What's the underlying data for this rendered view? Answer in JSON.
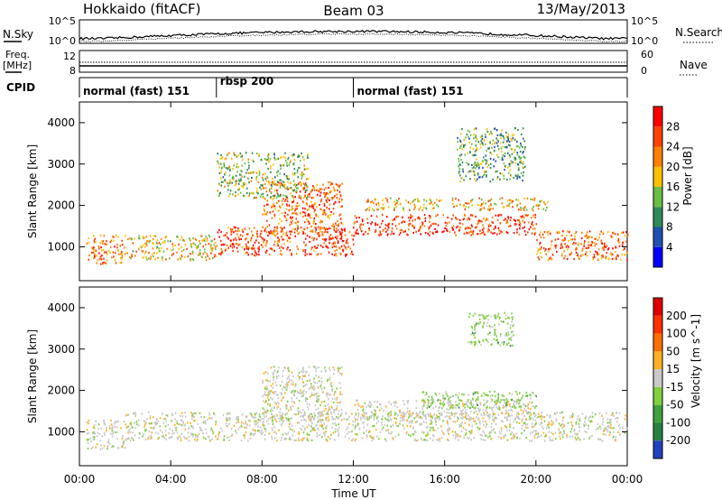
{
  "header": {
    "station": "Hokkaido (fitACF)",
    "beam": "Beam 03",
    "date": "13/May/2013"
  },
  "summary": {
    "nsky_label": "N.Sky",
    "nsearch_label": "N.Search",
    "nsky_ticks": [
      "10^5",
      "10^0"
    ],
    "nsearch_ticks": [
      "10^5",
      "10^0"
    ],
    "freq_label_line1": "Freq.",
    "freq_label_line2": "[MHz]",
    "freq_ticks": [
      "12",
      "8"
    ],
    "nave_label": "Nave",
    "nave_ticks": [
      "60",
      "0"
    ],
    "cpid_label": "CPID"
  },
  "cpid_modes": [
    {
      "label": "normal (fast) 151",
      "start_hour": 0
    },
    {
      "label": "rbsp 200",
      "start_hour": 6
    },
    {
      "label": "normal (fast) 151",
      "start_hour": 12
    }
  ],
  "x_ticks": [
    "00:00",
    "04:00",
    "08:00",
    "12:00",
    "16:00",
    "20:00",
    "00:00"
  ],
  "x_label": "Time UT",
  "chart_data": [
    {
      "type": "heatmap",
      "quantity": "Power",
      "ylabel": "Slant Range [km]",
      "xlabel": "Time UT",
      "x_range_hours": [
        0,
        24
      ],
      "ylim": [
        180,
        4500
      ],
      "y_ticks": [
        1000,
        2000,
        3000,
        4000
      ],
      "colorbar_label": "Power [dB]",
      "colorbar_ticks": [
        "28",
        "24",
        "20",
        "16",
        "12",
        "8",
        "4"
      ],
      "colorbar_colors": [
        "#0000ff",
        "#2050b0",
        "#2e8b57",
        "#6abd45",
        "#ffc000",
        "#ff8000",
        "#ff4000",
        "#ff0000"
      ],
      "scatter_bands": [
        {
          "t0": 0.3,
          "t1": 2.0,
          "r0": 600,
          "r1": 1300,
          "level": 0.75
        },
        {
          "t0": 2.0,
          "t1": 6.0,
          "r0": 700,
          "r1": 1300,
          "level": 0.6
        },
        {
          "t0": 6.0,
          "t1": 12.0,
          "r0": 800,
          "r1": 1500,
          "level": 0.85
        },
        {
          "t0": 8.0,
          "t1": 11.5,
          "r0": 1300,
          "r1": 2600,
          "level": 0.8
        },
        {
          "t0": 12.0,
          "t1": 20.0,
          "r0": 1300,
          "r1": 1800,
          "level": 0.9
        },
        {
          "t0": 12.5,
          "t1": 20.5,
          "r0": 1900,
          "r1": 2200,
          "level": 0.6
        },
        {
          "t0": 20.0,
          "t1": 24.0,
          "r0": 700,
          "r1": 1400,
          "level": 0.8
        },
        {
          "t0": 16.5,
          "t1": 19.5,
          "r0": 2600,
          "r1": 3900,
          "level": 0.35
        },
        {
          "t0": 6.0,
          "t1": 10.0,
          "r0": 2200,
          "r1": 3300,
          "level": 0.45
        }
      ]
    },
    {
      "type": "heatmap",
      "quantity": "Velocity",
      "ylabel": "Slant Range [km]",
      "xlabel": "Time UT",
      "x_range_hours": [
        0,
        24
      ],
      "ylim": [
        180,
        4500
      ],
      "y_ticks": [
        1000,
        2000,
        3000,
        4000
      ],
      "colorbar_label": "Velocity [m s^-1]",
      "colorbar_ticks": [
        "200",
        "100",
        "50",
        "15",
        "-15",
        "-50",
        "-100",
        "-200"
      ],
      "colorbar_colors": [
        "#2040c0",
        "#2a8040",
        "#40a040",
        "#80d040",
        "#c8c8c8",
        "#ffb020",
        "#ff7000",
        "#ff3000",
        "#e00000"
      ],
      "scatter_bands": [
        {
          "t0": 0.3,
          "t1": 2.0,
          "r0": 600,
          "r1": 1300,
          "level": 0.5
        },
        {
          "t0": 2.0,
          "t1": 24.0,
          "r0": 800,
          "r1": 1500,
          "level": 0.45
        },
        {
          "t0": 8.0,
          "t1": 11.5,
          "r0": 1300,
          "r1": 2600,
          "level": 0.5
        },
        {
          "t0": 12.0,
          "t1": 20.0,
          "r0": 1300,
          "r1": 1800,
          "level": 0.55
        },
        {
          "t0": 15.0,
          "t1": 20.0,
          "r0": 1600,
          "r1": 2000,
          "level": 0.75
        },
        {
          "t0": 17.0,
          "t1": 19.0,
          "r0": 3100,
          "r1": 3900,
          "level": 0.75
        }
      ]
    }
  ]
}
